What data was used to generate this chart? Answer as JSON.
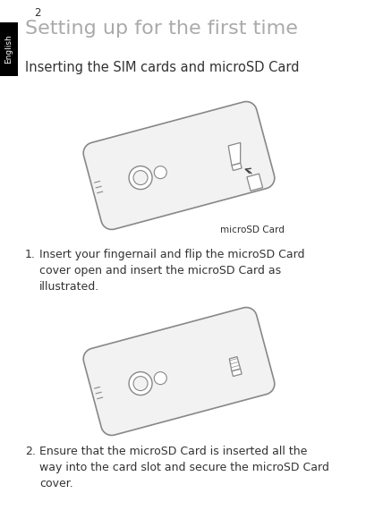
{
  "page_number": "2",
  "title": "Setting up for the first time",
  "section_heading": "Inserting the SIM cards and microSD Card",
  "tab_text": "English",
  "tab_bg": "#000000",
  "tab_text_color": "#ffffff",
  "bg_color": "#ffffff",
  "title_color": "#aaaaaa",
  "heading_color": "#333333",
  "body_color": "#333333",
  "label_microsd": "microSD Card",
  "step1_num": "1.",
  "step1_text": "Insert your fingernail and flip the microSD Card\ncover open and insert the microSD Card as\nillustrated.",
  "step2_num": "2.",
  "step2_text": "Ensure that the microSD Card is inserted all the\nway into the card slot and secure the microSD Card\ncover.",
  "phone_fill": "#f2f2f2",
  "phone_edge": "#888888",
  "phone_dark_edge": "#555555"
}
